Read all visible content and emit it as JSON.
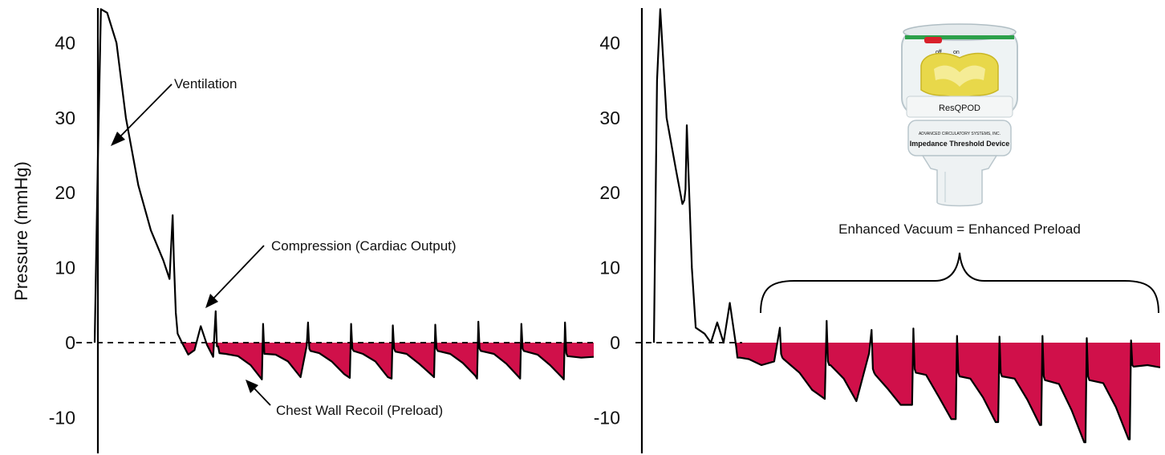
{
  "chart_data": [
    {
      "type": "line",
      "ylabel": "Pressure (mmHg)",
      "ylim": [
        -15,
        45
      ],
      "yticks": [
        -10,
        0,
        10,
        20,
        30,
        40
      ],
      "grid": false,
      "fill_below_zero_color": "#d0104a",
      "line_color": "#000000",
      "x_unit": "s",
      "series": [
        {
          "x": [
            0.0,
            0.05,
            0.1,
            0.2,
            0.35,
            0.5,
            0.7,
            0.9,
            1.1,
            1.2,
            1.25,
            1.27,
            1.3,
            1.33,
            1.4,
            1.5,
            1.6,
            1.7,
            1.8,
            1.9,
            1.94,
            1.96,
            1.98,
            2.0,
            2.1,
            2.3,
            2.5,
            2.68,
            2.7,
            2.72,
            2.74,
            2.9,
            3.1,
            3.3,
            3.4,
            3.42,
            3.44,
            3.46,
            3.6,
            3.8,
            4.0,
            4.09,
            4.11,
            4.13,
            4.15,
            4.3,
            4.5,
            4.7,
            4.76,
            4.78,
            4.8,
            4.82,
            5.0,
            5.2,
            5.4,
            5.44,
            5.46,
            5.48,
            5.5,
            5.7,
            5.9,
            6.1,
            6.13,
            6.15,
            6.17,
            6.19,
            6.4,
            6.6,
            6.8,
            6.82,
            6.84,
            6.86,
            6.88,
            7.1,
            7.3,
            7.5,
            7.52,
            7.54,
            7.56,
            7.58,
            7.8,
            8.0
          ],
          "y": [
            0,
            24,
            44.5,
            44,
            40,
            30,
            21,
            15,
            11,
            8.5,
            17,
            11,
            4,
            1.2,
            0,
            -1.6,
            -1,
            2.2,
            -0.3,
            -1.9,
            4.2,
            -0.5,
            -0.5,
            -1.4,
            -1.5,
            -1.8,
            -3,
            -4.9,
            2.5,
            -1.5,
            -1.5,
            -1.6,
            -2.5,
            -4.6,
            -0.4,
            2.7,
            -0.8,
            -1.1,
            -1.4,
            -2.5,
            -4.2,
            -4.7,
            2.5,
            -0.8,
            -1.1,
            -1.5,
            -2.5,
            -4.6,
            -4.8,
            2.3,
            -0.8,
            -1.2,
            -1.5,
            -2.8,
            -4.3,
            -4.6,
            2.4,
            -0.8,
            -1.1,
            -1.5,
            -2.7,
            -4.4,
            -4.8,
            2.8,
            -0.8,
            -1.1,
            -1.5,
            -2.8,
            -4.6,
            -4.8,
            2.5,
            -0.8,
            -1.1,
            -1.6,
            -3,
            -4.7,
            -4.9,
            2.7,
            -1.4,
            -1.8,
            -2,
            -1.9
          ]
        }
      ],
      "annotations": [
        {
          "text": "Ventilation",
          "x": 0.75,
          "y": 25.5
        },
        {
          "text": "Compression (Cardiac Output)",
          "x": 2.06,
          "y": 5
        },
        {
          "text": "Chest Wall Recoil (Preload)",
          "x": 2.75,
          "y": -5.8
        }
      ]
    },
    {
      "type": "line",
      "ylim": [
        -15,
        45
      ],
      "yticks": [
        -10,
        0,
        10,
        20,
        30,
        40
      ],
      "grid": false,
      "fill_below_zero_color": "#d0104a",
      "line_color": "#000000",
      "x_unit": "s",
      "series": [
        {
          "x": [
            0.0,
            0.05,
            0.1,
            0.2,
            0.35,
            0.45,
            0.48,
            0.5,
            0.52,
            0.6,
            0.66,
            0.8,
            0.9,
            1.0,
            1.1,
            1.2,
            1.3,
            1.32,
            1.34,
            1.36,
            1.5,
            1.7,
            1.9,
            1.99,
            2.01,
            2.03,
            2.05,
            2.3,
            2.5,
            2.7,
            2.73,
            2.75,
            2.77,
            2.79,
            3.0,
            3.2,
            3.4,
            3.44,
            3.46,
            3.48,
            3.5,
            3.7,
            3.9,
            4.08,
            4.1,
            4.12,
            4.14,
            4.3,
            4.5,
            4.7,
            4.77,
            4.79,
            4.81,
            4.83,
            5.0,
            5.2,
            5.4,
            5.44,
            5.46,
            5.48,
            5.5,
            5.7,
            5.9,
            6.1,
            6.12,
            6.14,
            6.16,
            6.18,
            6.4,
            6.6,
            6.8,
            6.82,
            6.84,
            6.86,
            6.88,
            7.1,
            7.3,
            7.5,
            7.52,
            7.54,
            7.56,
            7.58,
            7.8,
            8.0
          ],
          "y": [
            0,
            35,
            44.5,
            30,
            23,
            18.5,
            19,
            20.5,
            29,
            10,
            2,
            1.2,
            0,
            2.7,
            0,
            5.3,
            -0.5,
            -2,
            -2,
            -2,
            -2.2,
            -3,
            -2.5,
            2,
            -1.5,
            -2,
            -2.2,
            -4,
            -6.3,
            -7.5,
            2.9,
            -2.5,
            -3,
            -3,
            -4.8,
            -7.8,
            -1.4,
            1.7,
            -3.5,
            -4,
            -4.3,
            -6.2,
            -8.3,
            -8.3,
            1.9,
            -3.5,
            -4,
            -4.3,
            -7.2,
            -10.2,
            -10.2,
            0.9,
            -4,
            -4.5,
            -4.8,
            -7.3,
            -10.6,
            -10.6,
            0.8,
            -4,
            -4.5,
            -4.8,
            -7.6,
            -11,
            -11,
            0.9,
            -4.5,
            -5,
            -5.5,
            -9,
            -13.3,
            -13.3,
            0.6,
            -4.5,
            -5,
            -5.4,
            -8.6,
            -12.9,
            -12.9,
            0.3,
            -3,
            -3.2,
            -3,
            -3.3
          ]
        }
      ],
      "annotations": [
        {
          "text": "Enhanced Vacuum = Enhanced Preload",
          "x": 4.44,
          "y": 15.5
        }
      ],
      "bracket": {
        "x_start": 1.22,
        "x_end": 7.98,
        "y_bottom": 3.5,
        "y_top": 9.5
      }
    }
  ],
  "device": {
    "brand": "ResQPOD",
    "band_text": "Impedance Threshold Device",
    "small_text": "ADVANCED CIRCULATORY SYSTEMS, INC.",
    "switch_off": "off",
    "switch_on": "on",
    "colors": {
      "cap": "#e8d84a",
      "red": "#d8202a",
      "blue": "#3058a8",
      "green": "#2ca04a"
    }
  }
}
